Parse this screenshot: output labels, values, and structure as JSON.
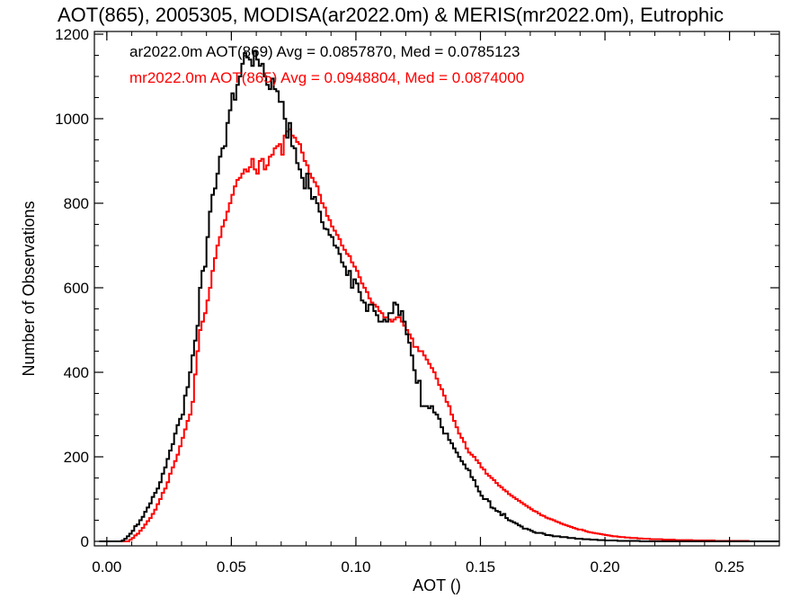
{
  "chart_data": {
    "type": "histogram-step",
    "title": "AOT(865), 2005305, MODISA(ar2022.0m) & MERIS(mr2022.0m), Eutrophic",
    "xlabel": "AOT ()",
    "ylabel": "Number of Observations",
    "xlim": [
      -0.005,
      0.27
    ],
    "ylim": [
      0,
      1200
    ],
    "xticks": [
      "0.00",
      "0.05",
      "0.10",
      "0.15",
      "0.20",
      "0.25"
    ],
    "yticks": [
      "0",
      "200",
      "400",
      "600",
      "800",
      "1000",
      "1200"
    ],
    "xtick_values": [
      0,
      0.05,
      0.1,
      0.15,
      0.2,
      0.25
    ],
    "ytick_values": [
      0,
      200,
      400,
      600,
      800,
      1000,
      1200
    ],
    "bin_width": 0.001,
    "series": [
      {
        "name": "ar2022.0m AOT(869) Avg = 0.0857870, Med = 0.0785123",
        "color": "#000000",
        "x_start": -0.003,
        "values": [
          0,
          0,
          0,
          0,
          0,
          0,
          0,
          0,
          0,
          2,
          6,
          12,
          18,
          25,
          36,
          40,
          50,
          58,
          70,
          80,
          90,
          105,
          115,
          125,
          140,
          160,
          175,
          195,
          215,
          230,
          255,
          275,
          290,
          300,
          345,
          365,
          400,
          440,
          475,
          510,
          600,
          640,
          650,
          720,
          780,
          820,
          835,
          870,
          910,
          930,
          935,
          990,
          1020,
          1060,
          1045,
          1080,
          1100,
          1130,
          1155,
          1145,
          1140,
          1125,
          1160,
          1140,
          1125,
          1130,
          1100,
          1080,
          1070,
          1095,
          1070,
          1065,
          1040,
          1040,
          1000,
          955,
          990,
          935,
          930,
          895,
          880,
          860,
          835,
          870,
          835,
          810,
          815,
          800,
          780,
          755,
          740,
          738,
          725,
          720,
          700,
          695,
          680,
          660,
          650,
          630,
          640,
          600,
          620,
          610,
          590,
          570,
          565,
          545,
          560,
          560,
          545,
          535,
          520,
          520,
          525,
          520,
          540,
          540,
          565,
          560,
          535,
          545,
          520,
          490,
          470,
          440,
          405,
          375,
          380,
          320,
          320,
          320,
          315,
          320,
          305,
          300,
          290,
          270,
          255,
          255,
          240,
          232,
          220,
          210,
          200,
          190,
          182,
          172,
          168,
          152,
          145,
          130,
          118,
          108,
          100,
          100,
          95,
          80,
          78,
          72,
          70,
          62,
          65,
          55,
          50,
          48,
          45,
          42,
          38,
          35,
          30,
          30,
          28,
          25,
          22,
          20,
          20,
          20,
          18,
          15,
          15,
          14,
          12,
          12,
          12,
          10,
          10,
          10,
          8,
          8,
          8,
          6,
          6,
          6,
          5,
          5,
          5,
          4,
          4,
          4,
          3,
          3,
          3,
          2,
          2,
          2,
          2,
          2,
          1,
          1,
          1,
          1,
          1,
          1,
          1,
          1,
          1,
          0,
          0,
          0,
          0,
          0,
          0,
          0,
          0,
          0,
          0,
          0,
          0,
          0,
          0,
          0,
          0,
          0,
          0,
          0,
          0,
          0,
          0,
          0,
          0,
          0,
          0,
          0,
          0,
          0,
          0,
          0,
          0,
          0,
          0,
          0,
          0,
          0,
          0,
          0,
          0,
          0,
          0,
          0,
          0,
          0,
          0,
          0,
          0,
          0,
          0,
          0,
          0,
          0,
          0,
          0,
          0,
          0,
          0,
          0,
          0,
          0,
          0,
          0
        ]
      },
      {
        "name": "mr2022.0m AOT(865) Avg = 0.0948804, Med = 0.0874000",
        "color": "#ff0000",
        "x_start": -0.003,
        "values": [
          0,
          0,
          0,
          0,
          0,
          0,
          0,
          0,
          0,
          0,
          0,
          0,
          4,
          8,
          14,
          18,
          25,
          32,
          40,
          48,
          55,
          65,
          75,
          88,
          100,
          115,
          125,
          140,
          160,
          175,
          190,
          205,
          225,
          245,
          265,
          285,
          300,
          330,
          395,
          450,
          500,
          520,
          540,
          570,
          600,
          640,
          670,
          700,
          720,
          745,
          760,
          780,
          800,
          820,
          840,
          855,
          860,
          870,
          880,
          875,
          885,
          905,
          880,
          870,
          900,
          905,
          880,
          890,
          910,
          915,
          930,
          935,
          940,
          915,
          960,
          970,
          975,
          960,
          955,
          945,
          940,
          920,
          900,
          890,
          870,
          860,
          850,
          840,
          820,
          800,
          790,
          770,
          760,
          745,
          735,
          725,
          715,
          700,
          690,
          680,
          675,
          660,
          650,
          640,
          625,
          610,
          600,
          590,
          575,
          565,
          560,
          555,
          545,
          540,
          530,
          530,
          525,
          520,
          525,
          530,
          530,
          520,
          510,
          500,
          490,
          480,
          460,
          460,
          450,
          450,
          440,
          430,
          420,
          410,
          400,
          385,
          370,
          360,
          345,
          330,
          320,
          300,
          285,
          270,
          255,
          245,
          235,
          220,
          210,
          205,
          200,
          192,
          185,
          175,
          170,
          160,
          155,
          150,
          145,
          138,
          132,
          128,
          122,
          118,
          112,
          108,
          104,
          100,
          96,
          92,
          88,
          84,
          80,
          76,
          72,
          70,
          66,
          62,
          60,
          56,
          54,
          52,
          50,
          47,
          45,
          42,
          40,
          38,
          36,
          34,
          32,
          30,
          28,
          28,
          26,
          24,
          22,
          21,
          20,
          19,
          18,
          17,
          16,
          15,
          14,
          13,
          12,
          12,
          11,
          10,
          10,
          9,
          9,
          8,
          8,
          8,
          7,
          7,
          6,
          6,
          6,
          5,
          5,
          5,
          5,
          5,
          4,
          4,
          4,
          4,
          4,
          3,
          3,
          3,
          3,
          3,
          3,
          3,
          2,
          2,
          2,
          2,
          2,
          2,
          2,
          2,
          2,
          1,
          1,
          1,
          1,
          1,
          1,
          1,
          1,
          1,
          1,
          1,
          1,
          1,
          1
        ]
      }
    ],
    "grid": false,
    "legend_placement": "top-left"
  }
}
